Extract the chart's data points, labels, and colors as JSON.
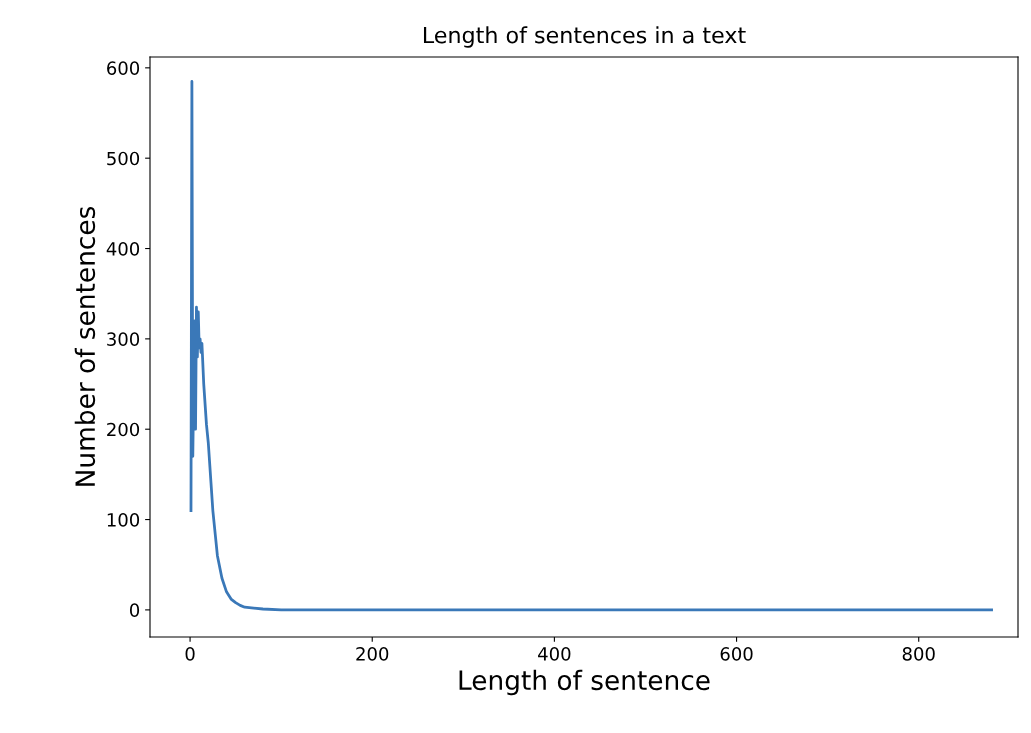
{
  "chart_data": {
    "type": "line",
    "title": "Length of sentences in a text",
    "xlabel": "Length of sentence",
    "ylabel": "Number of sentences",
    "x": [
      1,
      2,
      3,
      4,
      5,
      6,
      7,
      8,
      9,
      10,
      11,
      12,
      13,
      15,
      18,
      20,
      23,
      25,
      28,
      30,
      35,
      40,
      45,
      50,
      55,
      60,
      70,
      80,
      100,
      200,
      400,
      600,
      800,
      880
    ],
    "series": [
      {
        "color": "#3a78b8",
        "values": [
          110,
          585,
          170,
          250,
          320,
          200,
          335,
          280,
          330,
          290,
          300,
          285,
          295,
          250,
          205,
          185,
          140,
          110,
          80,
          60,
          35,
          20,
          12,
          8,
          5,
          3,
          2,
          1,
          0,
          0,
          0,
          0,
          0,
          0
        ]
      }
    ],
    "xlim": [
      -44,
      909
    ],
    "ylim": [
      -30,
      612
    ],
    "xticks": [
      0,
      200,
      400,
      600,
      800
    ],
    "yticks": [
      0,
      100,
      200,
      300,
      400,
      500,
      600
    ],
    "grid": false,
    "line_style": "solid",
    "marker": "none"
  }
}
